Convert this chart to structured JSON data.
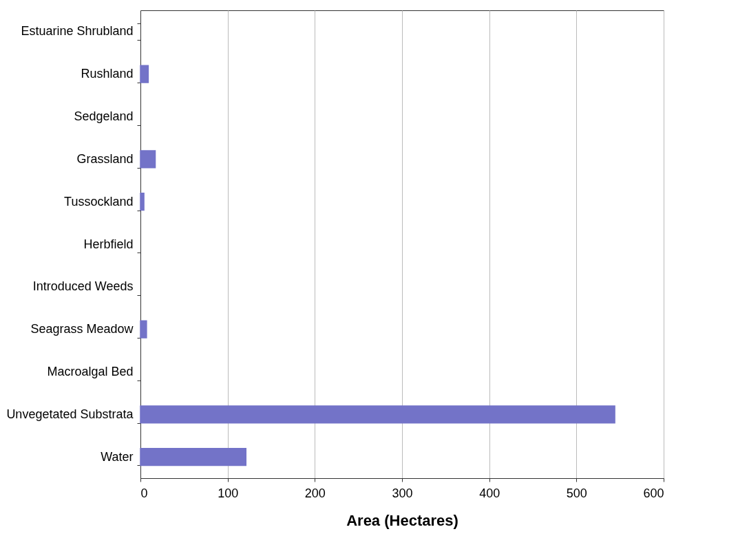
{
  "chart_data": {
    "type": "bar",
    "orientation": "horizontal",
    "xlabel": "Area (Hectares)",
    "categories": [
      "Estuarine Shrubland",
      "Rushland",
      "Sedgeland",
      "Grassland",
      "Tussockland",
      "Herbfield",
      "Introduced Weeds",
      "Seagrass Meadow",
      "Macroalgal Bed",
      "Unvegetated Substrata",
      "Water"
    ],
    "values": [
      0,
      9,
      0,
      17,
      4,
      0,
      0,
      7,
      0,
      544,
      121
    ],
    "color": "#7373c8",
    "xlim": [
      0,
      600
    ],
    "xticks": [
      0,
      100,
      200,
      300,
      400,
      500,
      600
    ],
    "grid": "x"
  }
}
